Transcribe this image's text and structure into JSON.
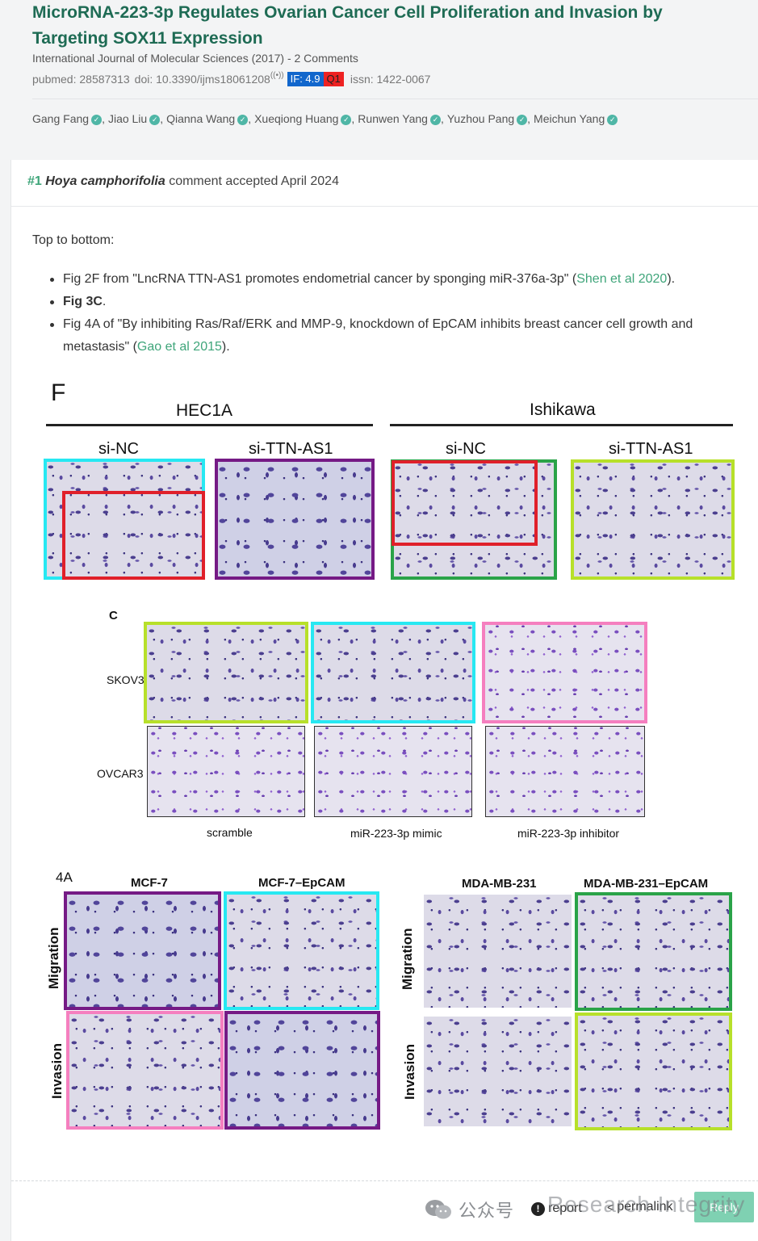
{
  "paper": {
    "title": "MicroRNA-223-3p Regulates Ovarian Cancer Cell Proliferation and Invasion by Targeting SOX11 Expression",
    "journal_line": "International Journal of Molecular Sciences (2017) - 2 Comments",
    "pubmed": "pubmed: 28587313",
    "doi": "doi: 10.3390/ijms18061208",
    "signal_icon": "((•))",
    "impact_factor": "IF: 4.9",
    "quartile": "Q1",
    "issn": "issn: 1422-0067",
    "authors": [
      "Gang Fang",
      "Jiao Liu",
      "Qianna Wang",
      "Xueqiong Huang",
      "Runwen Yang",
      "Yuzhou Pang",
      "Meichun Yang"
    ]
  },
  "comment": {
    "number": "#1",
    "species": "Hoya camphorifolia",
    "status": "comment accepted April 2024",
    "intro": "Top to bottom:",
    "bullet1_pre": "Fig 2F from \"LncRNA TTN-AS1 promotes endometrial cancer by sponging miR-376a-3p\" (",
    "bullet1_link": "Shen et al 2020",
    "bullet1_post": ").",
    "bullet2_bold": "Fig 3C",
    "bullet2_post": ".",
    "bullet3_pre": "Fig 4A of \"By inhibiting Ras/Raf/ERK and MMP-9, knockdown of EpCAM inhibits breast cancer cell growth and metastasis\" (",
    "bullet3_link": "Gao et al 2015",
    "bullet3_post": ")."
  },
  "figures": {
    "f": {
      "panel": "F",
      "group1": "HEC1A",
      "group2": "Ishikawa",
      "labels": [
        "si-NC",
        "si-TTN-AS1",
        "si-NC",
        "si-TTN-AS1"
      ]
    },
    "c": {
      "panel": "C",
      "rows": [
        "SKOV3",
        "OVCAR3"
      ],
      "cols": [
        "scramble",
        "miR-223-3p mimic",
        "miR-223-3p inhibitor"
      ]
    },
    "a4": {
      "panel": "4A",
      "cols_left": [
        "MCF-7",
        "MCF-7–EpCAM"
      ],
      "cols_right": [
        "MDA-MB-231",
        "MDA-MB-231–EpCAM"
      ],
      "rows": [
        "Migration",
        "Invasion"
      ]
    }
  },
  "footer": {
    "watermark": "公众号",
    "report": "report",
    "permalink": "permalink",
    "reply": "Reply",
    "overlay": "Research Integrity"
  },
  "colors": {
    "accent": "#1e6b54",
    "link": "#3fa57a",
    "if_badge": "#1166cc",
    "q_badge": "#ee2222",
    "reply": "#7fd1b2"
  }
}
